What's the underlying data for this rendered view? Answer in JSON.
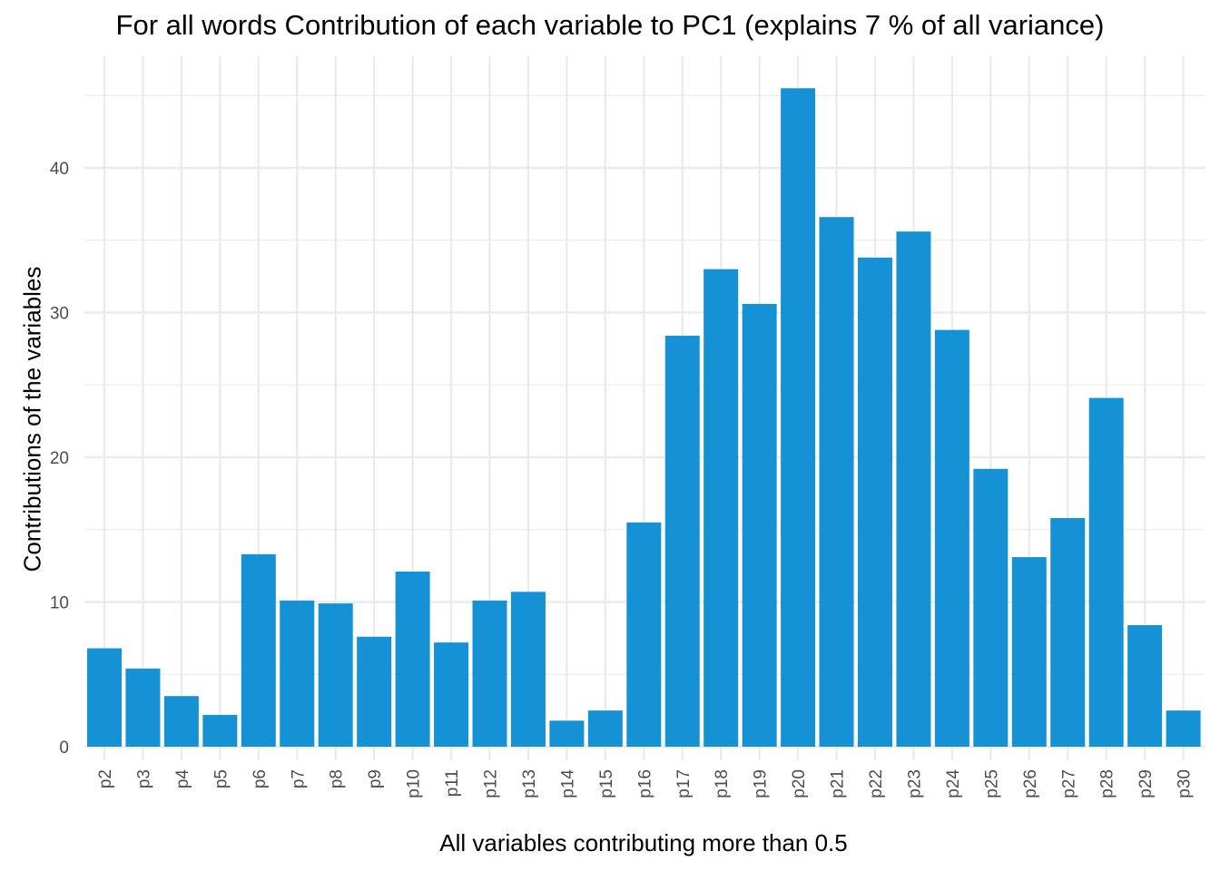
{
  "chart_data": {
    "type": "bar",
    "title": "For all words Contribution of each variable to PC1 (explains 7 % of all variance)",
    "xlabel": "All variables contributing more than 0.5",
    "ylabel": "Contributions of the variables",
    "categories": [
      "p2",
      "p3",
      "p4",
      "p5",
      "p6",
      "p7",
      "p8",
      "p9",
      "p10",
      "p11",
      "p12",
      "p13",
      "p14",
      "p15",
      "p16",
      "p17",
      "p18",
      "p19",
      "p20",
      "p21",
      "p22",
      "p23",
      "p24",
      "p25",
      "p26",
      "p27",
      "p28",
      "p29",
      "p30"
    ],
    "values": [
      6.8,
      5.4,
      3.5,
      2.2,
      13.3,
      10.1,
      9.9,
      7.6,
      12.1,
      7.2,
      10.1,
      10.7,
      1.8,
      2.5,
      15.5,
      28.4,
      33.0,
      30.6,
      45.5,
      36.6,
      33.8,
      35.6,
      28.8,
      19.2,
      13.1,
      15.8,
      24.1,
      8.4,
      2.5
    ],
    "ylim": [
      0,
      47
    ],
    "yticks": [
      0,
      10,
      20,
      30,
      40
    ],
    "grid": true,
    "bar_color": "#1591D6",
    "grid_color": "#EBEBEB",
    "tick_label_color": "#4D4D4D"
  }
}
